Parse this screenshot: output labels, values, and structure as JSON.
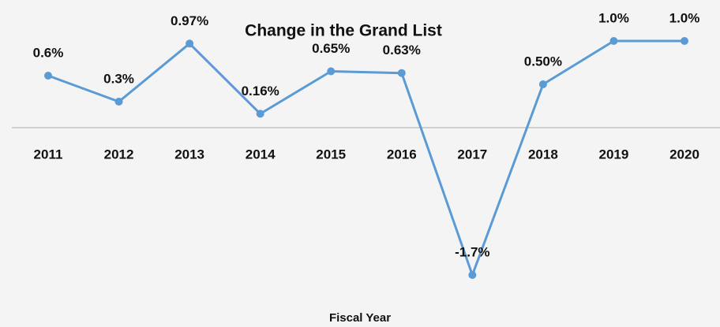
{
  "chart_data": {
    "type": "line",
    "title": "Change in the Grand List",
    "x_label": "Fiscal Year",
    "categories": [
      "2011",
      "2012",
      "2013",
      "2014",
      "2015",
      "2016",
      "2017",
      "2018",
      "2019",
      "2020"
    ],
    "series": [
      {
        "name": "Change in the Grand List",
        "color": "#5b9bd5",
        "values": [
          0.6,
          0.3,
          0.97,
          0.16,
          0.65,
          0.63,
          -1.7,
          0.5,
          1.0,
          1.0
        ],
        "value_labels": [
          "0.6%",
          "0.3%",
          "0.97%",
          "0.16%",
          "0.65%",
          "0.63%",
          "-1.7%",
          "0.50%",
          "1.0%",
          "1.0%"
        ]
      }
    ],
    "ylim": [
      -1.9,
      1.4
    ]
  }
}
